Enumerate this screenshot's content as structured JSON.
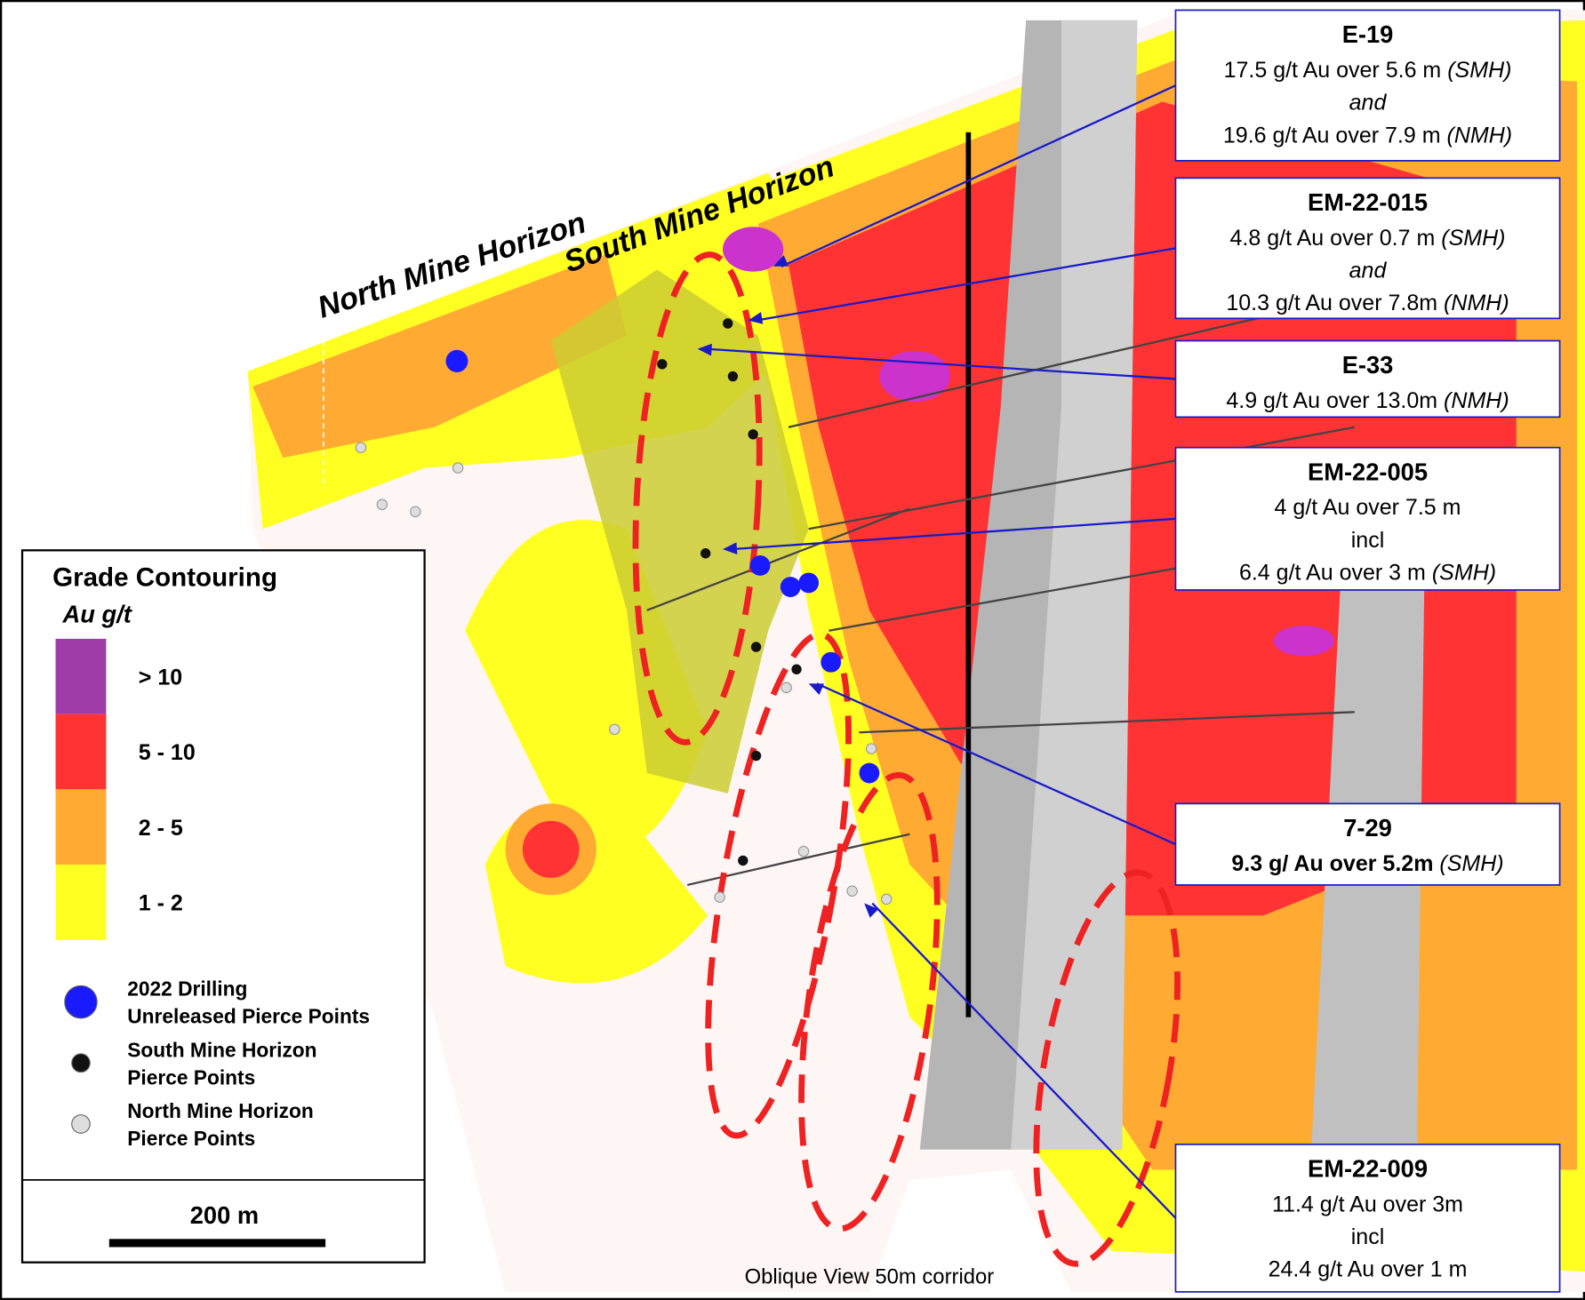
{
  "horizon_labels": [
    "North Mine Horizon",
    "South Mine Horizon"
  ],
  "callouts": [
    {
      "title": "E-19",
      "lines": [
        {
          "text": "17.5 g/t Au over 5.6 m",
          "note": "(SMH)"
        },
        {
          "text": "and",
          "style": "italic"
        },
        {
          "text": "19.6 g/t Au over 7.9 m",
          "note": "(NMH)"
        }
      ]
    },
    {
      "title": "EM-22-015",
      "lines": [
        {
          "text": "4.8 g/t Au over 0.7 m",
          "note": "(SMH)"
        },
        {
          "text": "and",
          "style": "italic"
        },
        {
          "text": "10.3 g/t Au over 7.8m",
          "note": "(NMH)"
        }
      ]
    },
    {
      "title": "E-33",
      "lines": [
        {
          "text": "4.9 g/t Au over 13.0m",
          "note": "(NMH)"
        }
      ]
    },
    {
      "title": "EM-22-005",
      "lines": [
        {
          "text": "4 g/t Au over 7.5 m"
        },
        {
          "text": "incl"
        },
        {
          "text": "6.4 g/t Au over 3 m",
          "note": "(SMH)"
        }
      ]
    },
    {
      "title": "7-29",
      "lines": [
        {
          "text": "9.3 g/ Au over 5.2m",
          "note": "(SMH)",
          "style": "bold"
        }
      ]
    },
    {
      "title": "EM-22-009",
      "lines": [
        {
          "text": "11.4 g/t Au over 3m"
        },
        {
          "text": "incl"
        },
        {
          "text": "24.4 g/t Au over 1 m"
        }
      ]
    }
  ],
  "legend": {
    "title": "Grade Contouring",
    "subtitle": "Au g/t",
    "classes": [
      {
        "label": "> 10",
        "color": "#a03ca8"
      },
      {
        "label": "5 - 10",
        "color": "#ff3333"
      },
      {
        "label": "2 - 5",
        "color": "#ffaa33"
      },
      {
        "label": "1 - 2",
        "color": "#ffff22"
      }
    ],
    "points": [
      {
        "lines": [
          "2022 Drilling",
          "Unreleased Pierce Points"
        ],
        "color": "#1a1aff"
      },
      {
        "lines": [
          "South Mine Horizon",
          "Pierce Points"
        ],
        "color": "#111111"
      },
      {
        "lines": [
          "North Mine Horizon",
          "Pierce Points"
        ],
        "color": "#dddddd"
      }
    ],
    "scale": "200 m"
  },
  "caption": "Oblique View 50m corridor"
}
